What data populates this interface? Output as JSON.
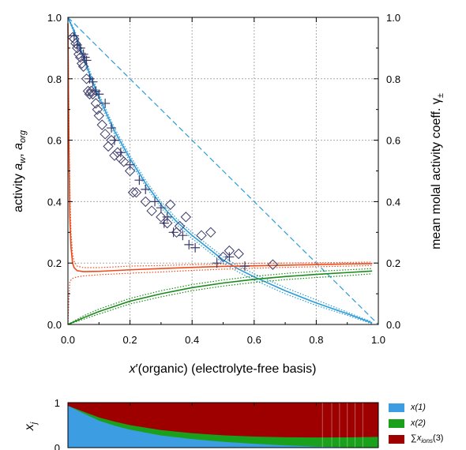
{
  "chart_data": [
    {
      "type": "line",
      "xlabel": "x′(organic)  (electrolyte-free basis)",
      "ylabel_left": "activity  a_w, a_org",
      "ylabel_right": "mean molal activity coeff.  γ±",
      "xlim": [
        0.0,
        1.0
      ],
      "ylim": [
        0.0,
        1.0
      ],
      "x_ticks": [
        "0.0",
        "0.2",
        "0.4",
        "0.6",
        "0.8",
        "1.0"
      ],
      "y_ticks": [
        "0.0",
        "0.2",
        "0.4",
        "0.6",
        "0.8",
        "1.0"
      ],
      "y_ticks_right": [
        "0.0",
        "0.2",
        "0.4",
        "0.6",
        "0.8",
        "1.0"
      ],
      "grid": true,
      "colors": {
        "water": "#2b9cd8",
        "organic": "#1a8a1a",
        "ions": "#f04a1a",
        "markers": "#3a3a6a"
      },
      "series": [
        {
          "style": "dashed",
          "color": "#2b9cd8",
          "x": [
            0,
            0.1,
            0.2,
            0.3,
            0.4,
            0.5,
            0.6,
            0.7,
            0.8,
            0.9,
            1.0
          ],
          "y": [
            1.0,
            0.9,
            0.8,
            0.7,
            0.6,
            0.5,
            0.4,
            0.3,
            0.2,
            0.1,
            0.0
          ]
        },
        {
          "style": "solid",
          "color": "#2b9cd8",
          "x": [
            0.0,
            0.02,
            0.05,
            0.08,
            0.1,
            0.15,
            0.2,
            0.25,
            0.3,
            0.35,
            0.4,
            0.45,
            0.5,
            0.55,
            0.6,
            0.7,
            0.8,
            0.9,
            0.98
          ],
          "y": [
            1.0,
            0.955,
            0.87,
            0.79,
            0.74,
            0.63,
            0.54,
            0.46,
            0.39,
            0.335,
            0.29,
            0.25,
            0.21,
            0.18,
            0.155,
            0.11,
            0.07,
            0.035,
            0.005
          ]
        },
        {
          "style": "dotted",
          "color": "#2b9cd8",
          "x": [
            0.0,
            0.02,
            0.05,
            0.08,
            0.1,
            0.15,
            0.2,
            0.25,
            0.3,
            0.35,
            0.4,
            0.45,
            0.5,
            0.55,
            0.6,
            0.7,
            0.8,
            0.9,
            0.98
          ],
          "y": [
            1.0,
            0.962,
            0.88,
            0.8,
            0.75,
            0.64,
            0.55,
            0.47,
            0.4,
            0.345,
            0.3,
            0.26,
            0.22,
            0.19,
            0.165,
            0.12,
            0.08,
            0.04,
            0.008
          ]
        },
        {
          "style": "dotted",
          "color": "#2b9cd8",
          "x": [
            0.0,
            0.02,
            0.05,
            0.08,
            0.1,
            0.15,
            0.2,
            0.25,
            0.3,
            0.35,
            0.4,
            0.45,
            0.5,
            0.55,
            0.6,
            0.7,
            0.8,
            0.9,
            0.98
          ],
          "y": [
            1.0,
            0.948,
            0.86,
            0.78,
            0.73,
            0.62,
            0.53,
            0.45,
            0.38,
            0.325,
            0.28,
            0.24,
            0.2,
            0.17,
            0.145,
            0.1,
            0.062,
            0.03,
            0.002
          ]
        },
        {
          "style": "solid",
          "color": "#1a8a1a",
          "x": [
            0.0,
            0.05,
            0.1,
            0.2,
            0.3,
            0.4,
            0.5,
            0.6,
            0.7,
            0.8,
            0.9,
            0.98
          ],
          "y": [
            0.0,
            0.022,
            0.042,
            0.076,
            0.1,
            0.12,
            0.135,
            0.147,
            0.156,
            0.163,
            0.169,
            0.174
          ]
        },
        {
          "style": "dotted",
          "color": "#1a8a1a",
          "x": [
            0.0,
            0.05,
            0.1,
            0.2,
            0.3,
            0.4,
            0.5,
            0.6,
            0.7,
            0.8,
            0.9,
            0.98
          ],
          "y": [
            0.0,
            0.028,
            0.05,
            0.085,
            0.11,
            0.13,
            0.145,
            0.157,
            0.166,
            0.173,
            0.178,
            0.182
          ]
        },
        {
          "style": "dotted",
          "color": "#1a8a1a",
          "x": [
            0.0,
            0.05,
            0.1,
            0.2,
            0.3,
            0.4,
            0.5,
            0.6,
            0.7,
            0.8,
            0.9,
            0.98
          ],
          "y": [
            0.0,
            0.017,
            0.034,
            0.067,
            0.09,
            0.11,
            0.125,
            0.137,
            0.146,
            0.153,
            0.159,
            0.165
          ]
        },
        {
          "style": "solid",
          "color": "#f04a1a",
          "x": [
            0.0,
            0.003,
            0.006,
            0.01,
            0.015,
            0.02,
            0.03,
            0.05,
            0.1,
            0.2,
            0.3,
            0.4,
            0.5,
            0.6,
            0.7,
            0.8,
            0.9,
            0.98
          ],
          "y": [
            0.98,
            0.6,
            0.35,
            0.25,
            0.2,
            0.185,
            0.175,
            0.172,
            0.173,
            0.178,
            0.182,
            0.186,
            0.189,
            0.191,
            0.193,
            0.195,
            0.197,
            0.198
          ]
        },
        {
          "style": "dotted",
          "color": "#f04a1a",
          "x": [
            0.0,
            0.003,
            0.006,
            0.01,
            0.015,
            0.02,
            0.03,
            0.05,
            0.1,
            0.2,
            0.3,
            0.4,
            0.5,
            0.6,
            0.7,
            0.8,
            0.9,
            0.98
          ],
          "y": [
            0.98,
            0.7,
            0.45,
            0.3,
            0.23,
            0.205,
            0.19,
            0.185,
            0.185,
            0.19,
            0.192,
            0.195,
            0.197,
            0.199,
            0.2,
            0.201,
            0.202,
            0.203
          ]
        },
        {
          "style": "dotted",
          "color": "#f04a1a",
          "x": [
            0.0,
            0.003,
            0.006,
            0.01,
            0.015,
            0.02,
            0.03,
            0.05,
            0.1,
            0.2,
            0.3,
            0.4,
            0.5,
            0.6,
            0.7,
            0.8,
            0.9,
            0.98
          ],
          "y": [
            0.0,
            0.08,
            0.14,
            0.145,
            0.15,
            0.152,
            0.155,
            0.158,
            0.162,
            0.167,
            0.171,
            0.176,
            0.18,
            0.183,
            0.186,
            0.188,
            0.19,
            0.192
          ]
        }
      ],
      "markers_diamond": {
        "color": "#3a3a6a",
        "x": [
          0.015,
          0.02,
          0.025,
          0.03,
          0.035,
          0.04,
          0.045,
          0.05,
          0.06,
          0.065,
          0.07,
          0.075,
          0.08,
          0.09,
          0.095,
          0.1,
          0.11,
          0.12,
          0.13,
          0.14,
          0.15,
          0.16,
          0.17,
          0.18,
          0.2,
          0.21,
          0.22,
          0.25,
          0.27,
          0.3,
          0.32,
          0.33,
          0.35,
          0.36,
          0.38,
          0.43,
          0.46,
          0.5,
          0.52,
          0.55,
          0.66
        ],
        "y": [
          0.935,
          0.93,
          0.915,
          0.9,
          0.88,
          0.87,
          0.85,
          0.84,
          0.8,
          0.76,
          0.75,
          0.76,
          0.75,
          0.72,
          0.7,
          0.68,
          0.65,
          0.62,
          0.58,
          0.6,
          0.55,
          0.56,
          0.54,
          0.53,
          0.5,
          0.43,
          0.43,
          0.4,
          0.37,
          0.35,
          0.33,
          0.39,
          0.3,
          0.32,
          0.35,
          0.29,
          0.3,
          0.22,
          0.24,
          0.23,
          0.195
        ]
      },
      "markers_plus": {
        "color": "#3a3a6a",
        "x": [
          0.02,
          0.03,
          0.04,
          0.05,
          0.055,
          0.06,
          0.07,
          0.08,
          0.09,
          0.1,
          0.12,
          0.14,
          0.15,
          0.17,
          0.2,
          0.23,
          0.25,
          0.28,
          0.3,
          0.31,
          0.32,
          0.34,
          0.37,
          0.39,
          0.41,
          0.48,
          0.52,
          0.57
        ],
        "y": [
          0.94,
          0.91,
          0.9,
          0.88,
          0.87,
          0.86,
          0.8,
          0.79,
          0.76,
          0.75,
          0.72,
          0.64,
          0.6,
          0.56,
          0.52,
          0.47,
          0.44,
          0.4,
          0.38,
          0.33,
          0.35,
          0.3,
          0.29,
          0.26,
          0.25,
          0.2,
          0.22,
          0.19
        ]
      }
    },
    {
      "type": "area",
      "ylabel": "x_j",
      "ylim": [
        0,
        1
      ],
      "y_ticks": [
        "0",
        "1"
      ],
      "legend_placement": "right",
      "legend": [
        {
          "label": "x(1)",
          "color": "#3c9de3"
        },
        {
          "label": "x(2)",
          "color": "#1aa01a"
        },
        {
          "label": "∑x_ions(3)",
          "color": "#9e0000"
        }
      ],
      "x": [
        0.0,
        0.05,
        0.1,
        0.15,
        0.2,
        0.3,
        0.4,
        0.5,
        0.6,
        0.7,
        0.8,
        0.9,
        1.0
      ],
      "x1": [
        0.93,
        0.76,
        0.6,
        0.49,
        0.4,
        0.27,
        0.19,
        0.13,
        0.085,
        0.05,
        0.025,
        0.008,
        0.0
      ],
      "x2": [
        0.0,
        0.04,
        0.07,
        0.09,
        0.1,
        0.12,
        0.13,
        0.145,
        0.16,
        0.18,
        0.2,
        0.22,
        0.24
      ]
    }
  ]
}
